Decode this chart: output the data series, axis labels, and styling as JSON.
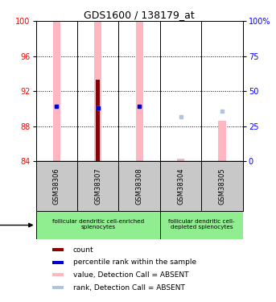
{
  "title": "GDS1600 / 138179_at",
  "samples": [
    "GSM38306",
    "GSM38307",
    "GSM38308",
    "GSM38304",
    "GSM38305"
  ],
  "ylim_left": [
    84,
    100
  ],
  "ylim_right": [
    0,
    100
  ],
  "yticks_left": [
    84,
    88,
    92,
    96,
    100
  ],
  "yticks_right": [
    0,
    25,
    50,
    75,
    100
  ],
  "ytick_labels_right": [
    "0",
    "25",
    "50",
    "75",
    "100%"
  ],
  "pink_bars_top": [
    100,
    100,
    100,
    84.3,
    88.6
  ],
  "red_bars_top": [
    84,
    93.3,
    84,
    84,
    84
  ],
  "blue_dots_y": [
    90.3,
    90.1,
    90.3,
    -999,
    -999
  ],
  "blue_dots_visible": [
    true,
    true,
    true,
    false,
    false
  ],
  "light_blue_dots_y": [
    90.3,
    90.1,
    90.3,
    89.1,
    89.7
  ],
  "light_blue_dots_visible": [
    true,
    true,
    true,
    true,
    true
  ],
  "cell_type_groups": [
    {
      "label": "follicular dendritic cell-enriched\nsplenocytes",
      "n_samples": 3,
      "color": "#90EE90"
    },
    {
      "label": "follicular dendritic cell-\ndepleted splenocytes",
      "n_samples": 2,
      "color": "#90EE90"
    }
  ],
  "sample_bg_color": "#C8C8C8",
  "pink_color": "#FFB6C1",
  "red_color": "#8B0000",
  "blue_color": "#0000CC",
  "light_blue_color": "#B0C4DE",
  "bar_bottom": 84,
  "pink_bar_width": 0.18,
  "red_bar_width": 0.1
}
